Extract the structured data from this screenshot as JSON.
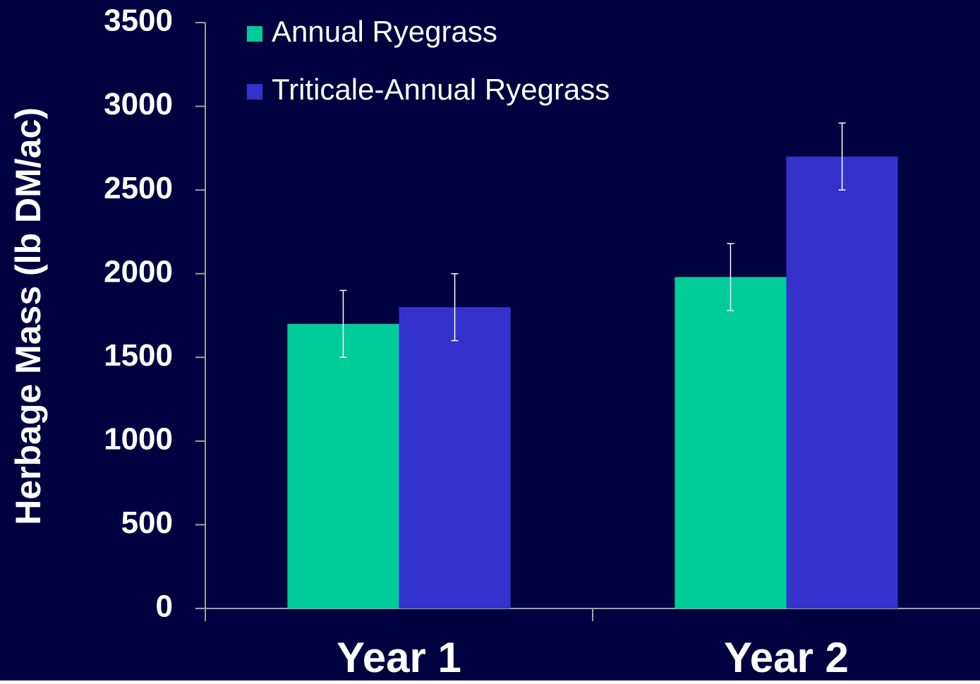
{
  "chart_data": {
    "type": "bar",
    "y_label": "Herbage Mass (lb DM/ac)",
    "categories": [
      "Year 1",
      "Year 2"
    ],
    "series": [
      {
        "name": "Annual Ryegrass",
        "color": "#00cc99",
        "values": [
          1700,
          1980
        ],
        "errors": [
          200,
          200
        ]
      },
      {
        "name": "Triticale-Annual Ryegrass",
        "color": "#3333cc",
        "values": [
          1800,
          2700
        ],
        "errors": [
          200,
          200
        ]
      }
    ],
    "ylim": [
      0,
      3500
    ],
    "yticks": [
      0,
      500,
      1000,
      1500,
      2000,
      2500,
      3000,
      3500
    ],
    "legend": "top-left",
    "background": "#000040"
  }
}
